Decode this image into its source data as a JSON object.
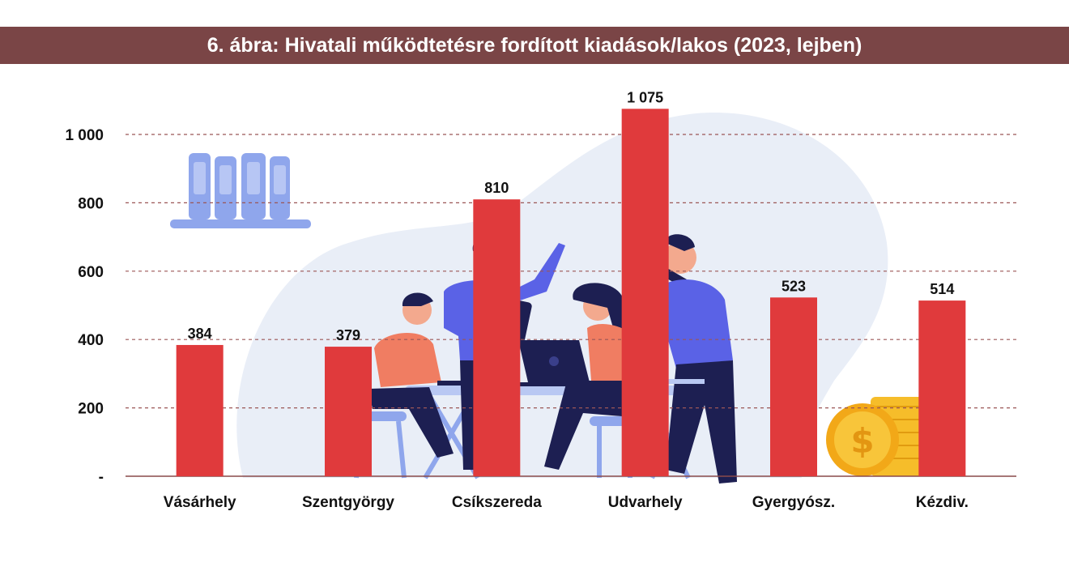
{
  "title": "6. ábra: Hivatali működtetésre fordított kiadások/lakos (2023, lejben)",
  "chart_data": {
    "type": "bar",
    "title": "6. ábra: Hivatali működtetésre fordított kiadások/lakos (2023, lejben)",
    "categories": [
      "Vásárhely",
      "Szentgyörgy",
      "Csíkszereda",
      "Udvarhely",
      "Gyergyósz.",
      "Kézdiv."
    ],
    "values": [
      384,
      379,
      810,
      1075,
      523,
      514
    ],
    "value_labels": [
      "384",
      "379",
      "810",
      "1 075",
      "523",
      "514"
    ],
    "y_ticks": [
      0,
      200,
      400,
      600,
      800,
      1000
    ],
    "y_tick_labels": [
      "-",
      "200",
      "400",
      "600",
      "800",
      "1 000"
    ],
    "ylim": [
      0,
      1000
    ],
    "xlabel": "",
    "ylabel": "",
    "grid": true,
    "legend": "none",
    "colors": {
      "bar": "#e03a3c",
      "title_bg": "#7a4546",
      "grid": "#9b5656",
      "baseline": "#8a4a4a",
      "blob": "#e9eef7"
    }
  }
}
